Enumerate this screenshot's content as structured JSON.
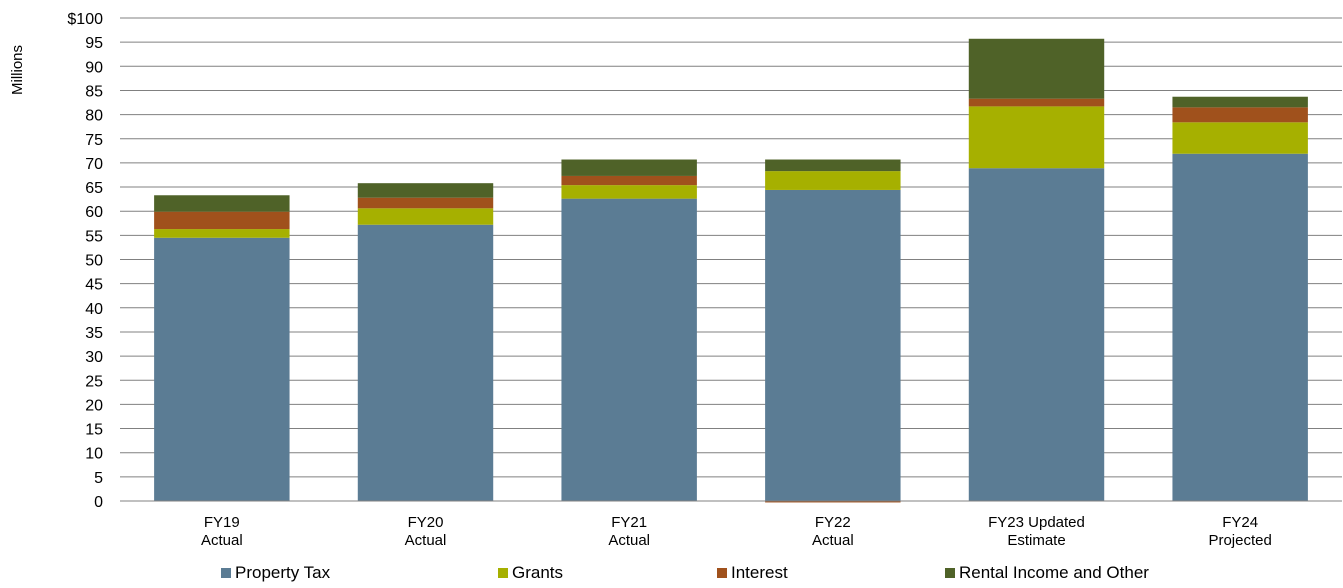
{
  "chart_data": {
    "type": "bar",
    "stacked": true,
    "ylabel": "Millions",
    "ylim": [
      0,
      100
    ],
    "ytick_step": 5,
    "ytick_labels": [
      "0",
      "5",
      "10",
      "15",
      "20",
      "25",
      "30",
      "35",
      "40",
      "45",
      "50",
      "55",
      "60",
      "65",
      "70",
      "75",
      "80",
      "85",
      "90",
      "95",
      "$100"
    ],
    "categories": [
      [
        "FY19",
        "Actual"
      ],
      [
        "FY20",
        "Actual"
      ],
      [
        "FY21",
        "Actual"
      ],
      [
        "FY22",
        "Actual"
      ],
      [
        "FY23 Updated",
        "Estimate"
      ],
      [
        "FY24",
        "Projected"
      ]
    ],
    "series": [
      {
        "name": "Property Tax",
        "color": "#5b7c94",
        "values": [
          54.5,
          57.2,
          62.6,
          64.4,
          68.9,
          71.9
        ]
      },
      {
        "name": "Grants",
        "color": "#a6b000",
        "values": [
          1.8,
          3.4,
          2.8,
          3.9,
          12.8,
          6.5
        ]
      },
      {
        "name": "Interest",
        "color": "#a0511c",
        "values": [
          3.6,
          2.2,
          1.9,
          -0.3,
          1.6,
          3.1
        ]
      },
      {
        "name": "Rental Income and Other",
        "color": "#4f6228",
        "values": [
          3.4,
          3.0,
          3.4,
          2.4,
          12.4,
          2.2
        ]
      }
    ],
    "grid": true,
    "legend_position": "bottom"
  }
}
